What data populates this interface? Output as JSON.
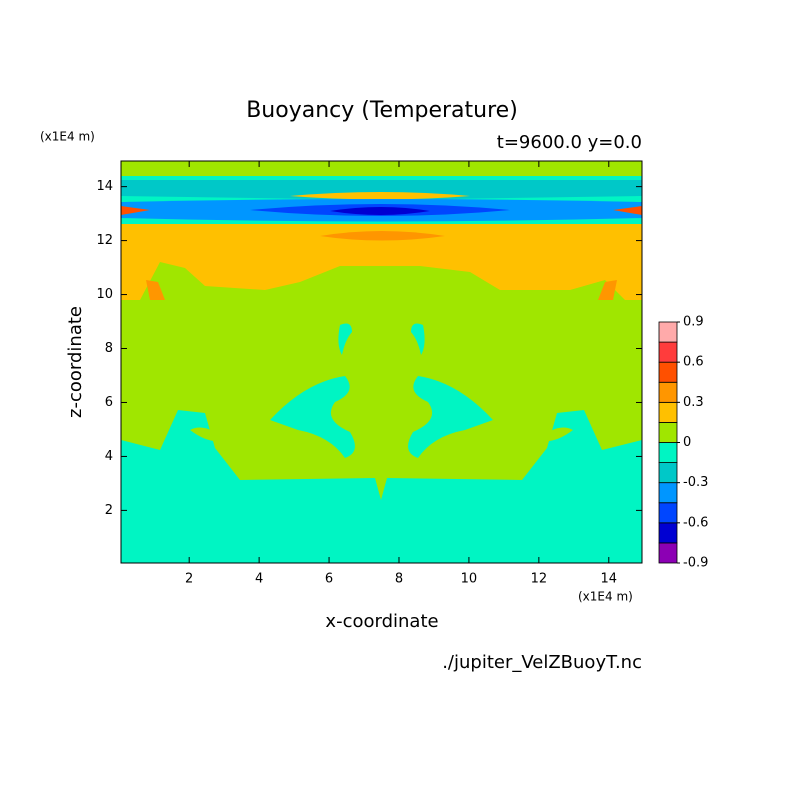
{
  "chart_data": {
    "type": "contour",
    "title": "Buoyancy (Temperature)",
    "subtitle": "t=9600.0 y=0.0",
    "x_unit": "(x1E4 m)",
    "y_unit": "(x1E4 m)",
    "xlabel": "x-coordinate",
    "ylabel": "z-coordinate",
    "source": "./jupiter_VelZBuoyT.nc",
    "xlim": [
      0.05,
      14.95
    ],
    "xticks": [
      2,
      4,
      6,
      8,
      10,
      12,
      14
    ],
    "ylim": [
      0.05,
      14.95
    ],
    "yticks": [
      2,
      4,
      6,
      8,
      10,
      12,
      14
    ],
    "colorbar": {
      "levels": [
        -0.9,
        -0.75,
        -0.6,
        -0.45,
        -0.3,
        -0.15,
        0,
        0.15,
        0.3,
        0.45,
        0.6,
        0.75,
        0.9
      ],
      "colors": [
        "#8c00b4",
        "#0000d2",
        "#0046ff",
        "#0096ff",
        "#00c8c8",
        "#00f5c3",
        "#a0e600",
        "#ffc000",
        "#ff9600",
        "#ff5000",
        "#ff3c3c",
        "#ffaaaa"
      ],
      "ticks": [
        -0.9,
        -0.6,
        -0.3,
        0,
        0.3,
        0.6,
        0.9
      ]
    }
  }
}
